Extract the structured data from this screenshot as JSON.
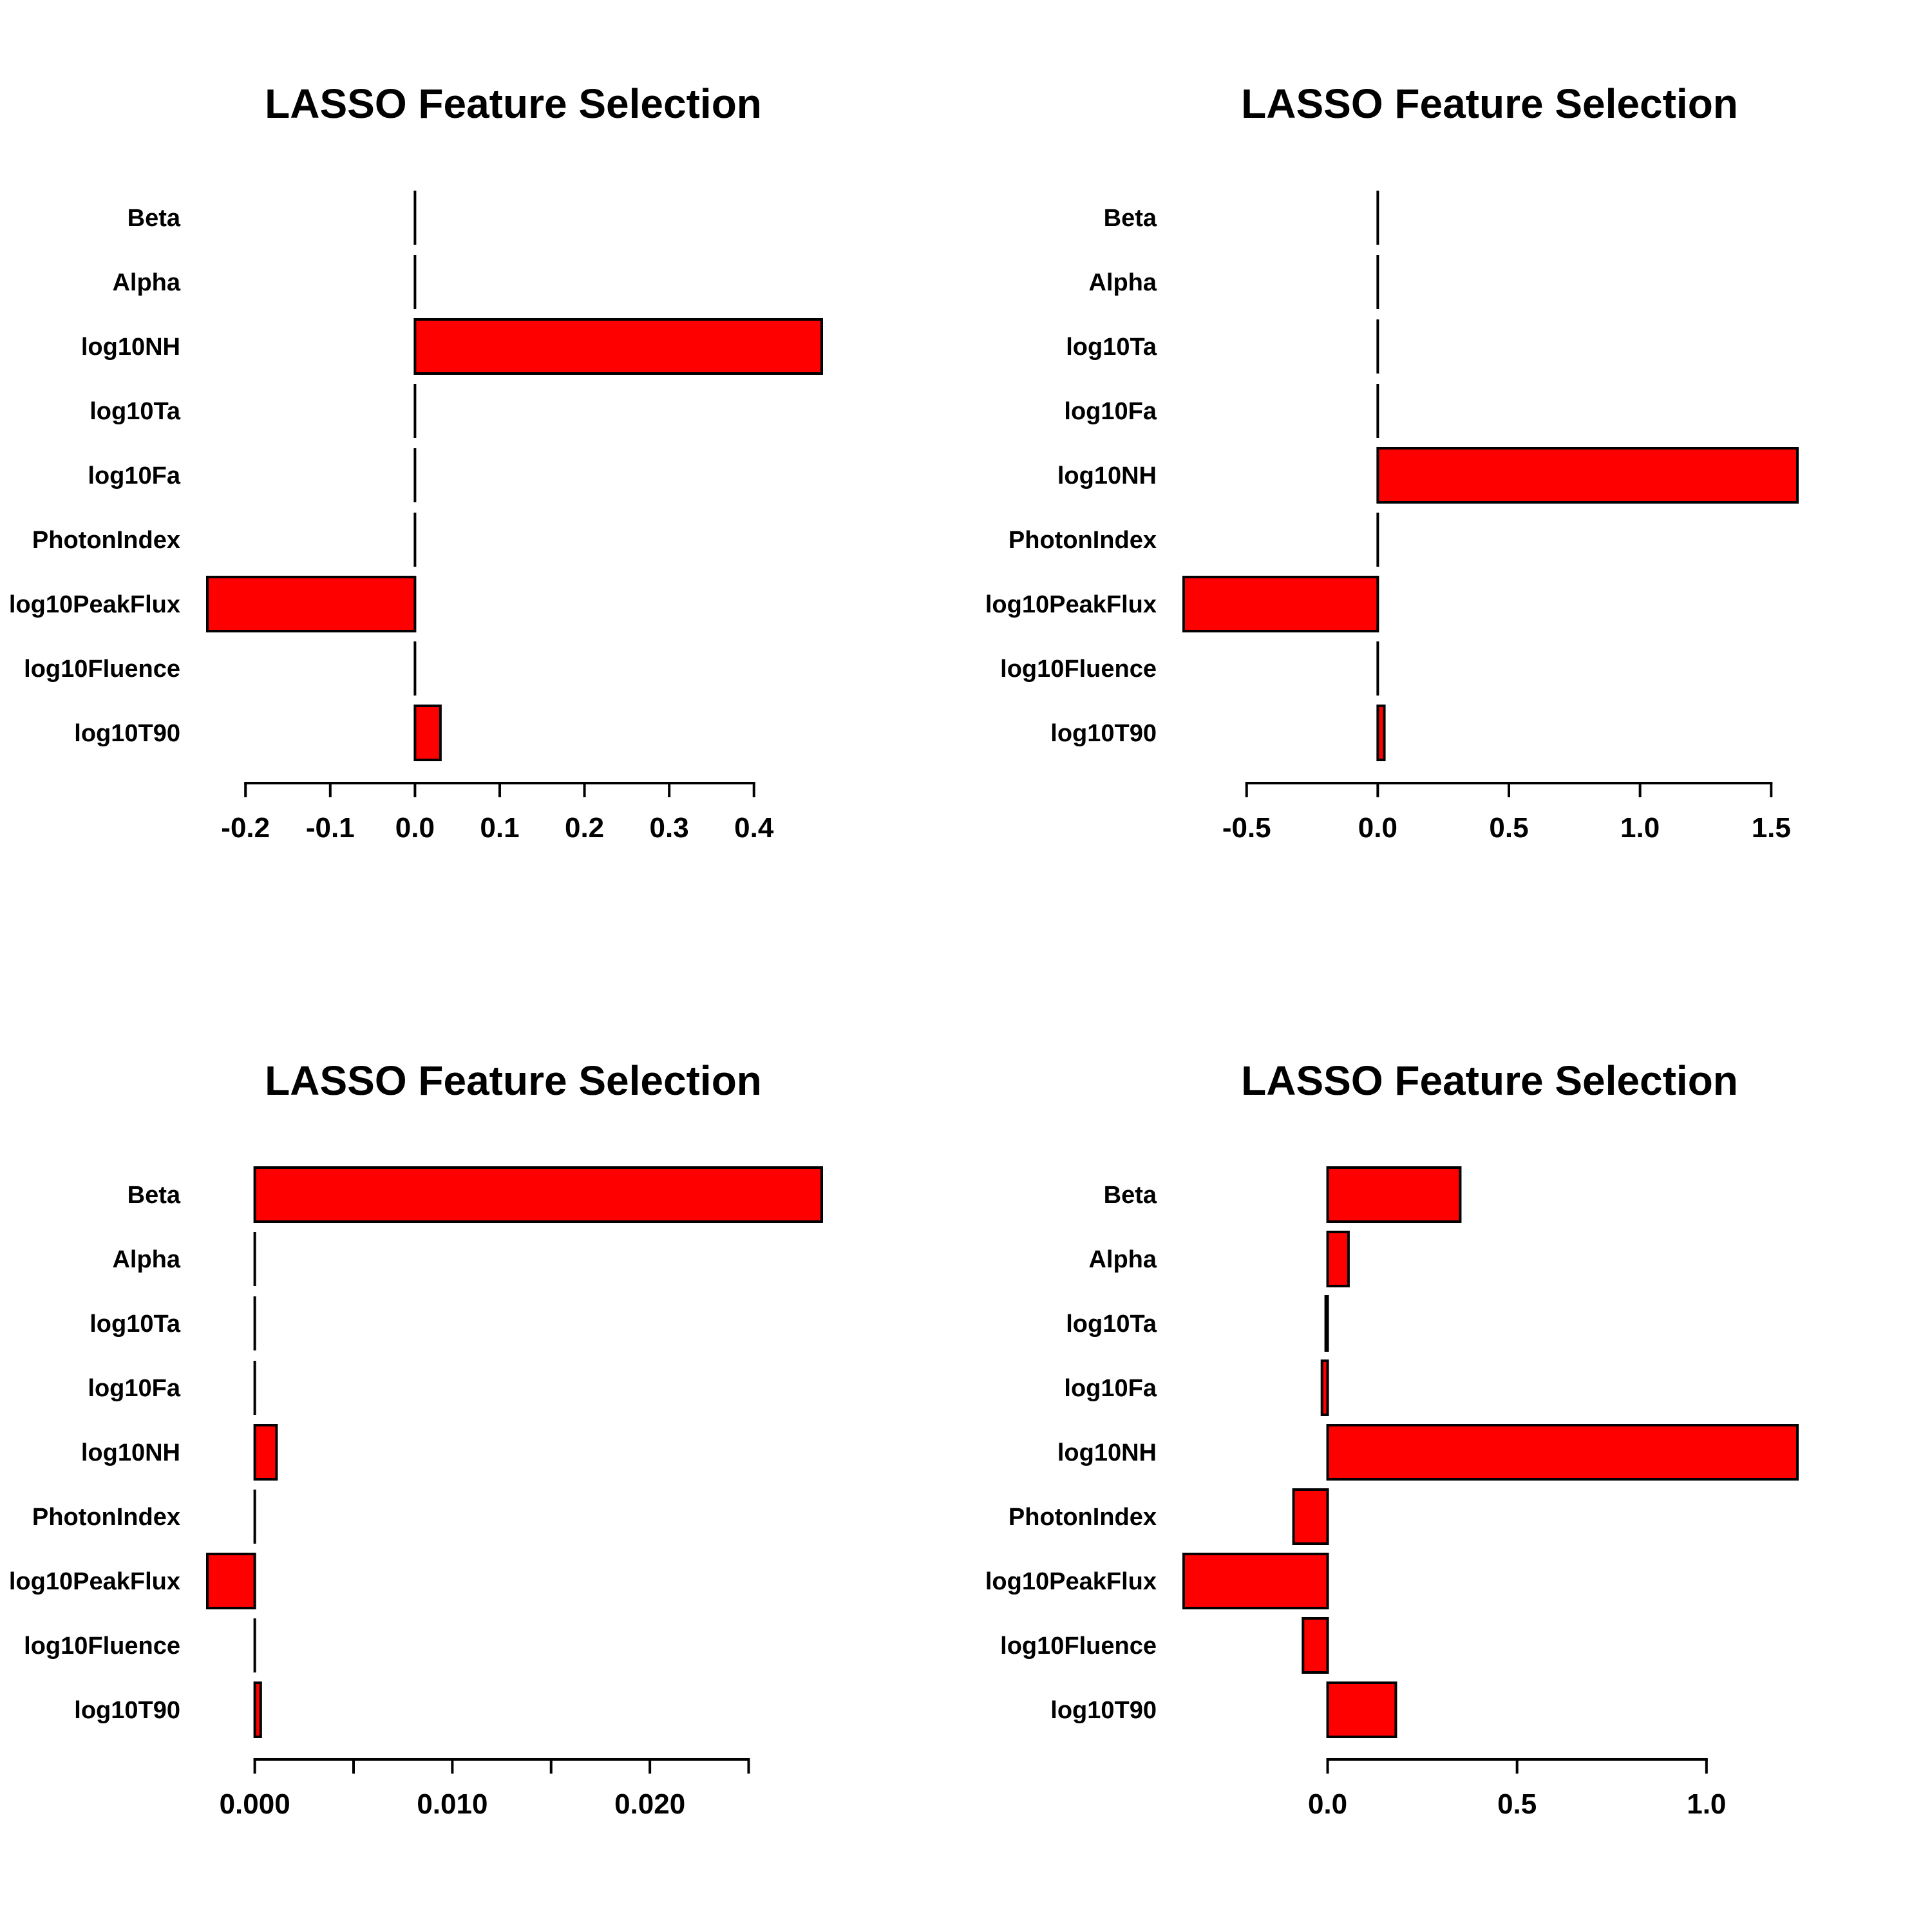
{
  "colors": {
    "bar_fill": "#ff0000",
    "bar_stroke": "#000000",
    "background": "#ffffff"
  },
  "chart_data": [
    {
      "type": "bar",
      "orientation": "horizontal",
      "title": "LASSO Feature Selection",
      "categories": [
        "Beta",
        "Alpha",
        "log10NH",
        "log10Ta",
        "log10Fa",
        "PhotonIndex",
        "log10PeakFlux",
        "log10Fluence",
        "log10T90"
      ],
      "values": [
        0,
        0,
        0.48,
        0,
        0,
        0,
        -0.245,
        0,
        0.03
      ],
      "xlim": [
        -0.245,
        0.48
      ],
      "axis_ticks": [
        -0.2,
        -0.1,
        0.0,
        0.1,
        0.2,
        0.3,
        0.4
      ],
      "tick_labels": [
        "-0.2",
        "-0.1",
        "0.0",
        "0.1",
        "0.2",
        "0.3",
        "0.4"
      ],
      "xlabel": "",
      "ylabel": "",
      "grid": false,
      "legend": "none"
    },
    {
      "type": "bar",
      "orientation": "horizontal",
      "title": "LASSO Feature Selection",
      "categories": [
        "Beta",
        "Alpha",
        "log10Ta",
        "log10Fa",
        "log10NH",
        "PhotonIndex",
        "log10PeakFlux",
        "log10Fluence",
        "log10T90"
      ],
      "values": [
        0,
        0,
        0,
        0,
        1.6,
        0,
        -0.74,
        0,
        0.025
      ],
      "xlim": [
        -0.74,
        1.6
      ],
      "axis_ticks": [
        -0.5,
        0.0,
        0.5,
        1.0,
        1.5
      ],
      "tick_labels": [
        "-0.5",
        "0.0",
        "0.5",
        "1.0",
        "1.5"
      ],
      "xlabel": "",
      "ylabel": "",
      "grid": false,
      "legend": "none"
    },
    {
      "type": "bar",
      "orientation": "horizontal",
      "title": "LASSO Feature Selection",
      "categories": [
        "Beta",
        "Alpha",
        "log10Ta",
        "log10Fa",
        "log10NH",
        "PhotonIndex",
        "log10PeakFlux",
        "log10Fluence",
        "log10T90"
      ],
      "values": [
        0.0287,
        0,
        0,
        0,
        0.0011,
        0,
        -0.0024,
        0,
        0.0003
      ],
      "xlim": [
        -0.0024,
        0.0287
      ],
      "axis_ticks": [
        0.0,
        0.005,
        0.01,
        0.015,
        0.02,
        0.025
      ],
      "tick_labels": [
        "0.000",
        "",
        "0.010",
        "",
        "0.020",
        ""
      ],
      "xlabel": "",
      "ylabel": "",
      "grid": false,
      "legend": "none"
    },
    {
      "type": "bar",
      "orientation": "horizontal",
      "title": "LASSO Feature Selection",
      "categories": [
        "Beta",
        "Alpha",
        "log10Ta",
        "log10Fa",
        "log10NH",
        "PhotonIndex",
        "log10PeakFlux",
        "log10Fluence",
        "log10T90"
      ],
      "values": [
        0.35,
        0.055,
        -0.005,
        -0.015,
        1.24,
        -0.09,
        -0.38,
        -0.065,
        0.18
      ],
      "xlim": [
        -0.38,
        1.24
      ],
      "axis_ticks": [
        0.0,
        0.5,
        1.0
      ],
      "tick_labels": [
        "0.0",
        "0.5",
        "1.0"
      ],
      "xlabel": "",
      "ylabel": "",
      "grid": false,
      "legend": "none"
    }
  ]
}
